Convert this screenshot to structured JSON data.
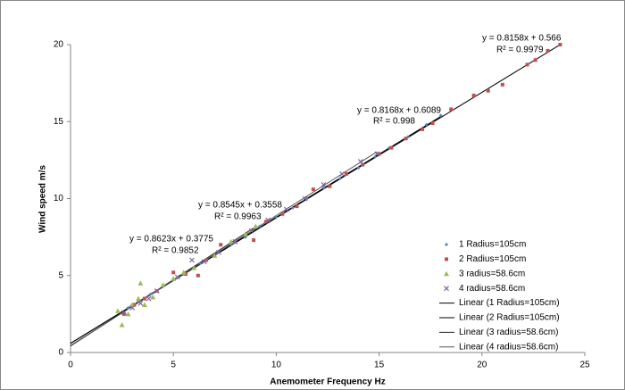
{
  "chart_data": {
    "type": "scatter",
    "x_label": "Anemometer Frequency Hz",
    "y_label": "Wind speed m/s",
    "xlim": [
      0,
      25
    ],
    "xticks": [
      0,
      5,
      10,
      15,
      20,
      25
    ],
    "ylim": [
      0,
      20
    ],
    "yticks": [
      0,
      5,
      10,
      15,
      20
    ],
    "grid": false,
    "legend": "right",
    "series": [
      {
        "name": "1 Radius=105cm",
        "color": "#4f81bd",
        "marker": "diamond",
        "x": [
          2.8,
          3.3,
          3.9,
          4.5,
          5.5,
          6.3,
          7.0,
          7.8,
          8.5,
          9.2,
          10.0,
          10.8,
          11.5,
          12.3,
          13.1,
          14.0,
          14.8,
          15.5,
          16.4,
          17.3,
          18.0
        ],
        "values": [
          2.9,
          3.3,
          3.8,
          4.3,
          5.1,
          5.8,
          6.3,
          7.0,
          7.5,
          8.2,
          8.8,
          9.4,
          10.0,
          10.7,
          11.3,
          12.0,
          12.7,
          13.3,
          14.0,
          14.8,
          15.4
        ],
        "trendline": {
          "name": "Linear (1 Radius=105cm)",
          "equation": "y = 0.8168x + 0.6089",
          "r2": "R² = 0.998"
        }
      },
      {
        "name": "2 Radius=105cm",
        "color": "#c0504d",
        "marker": "square",
        "x": [
          2.6,
          3.1,
          3.6,
          4.2,
          5.0,
          5.6,
          6.2,
          6.6,
          7.3,
          8.0,
          8.9,
          9.5,
          10.3,
          11.0,
          11.8,
          12.6,
          13.4,
          14.2,
          15.0,
          15.6,
          16.3,
          17.1,
          17.6,
          18.5,
          19.6,
          20.3,
          21.0,
          22.2,
          22.6,
          23.2,
          23.8
        ],
        "values": [
          2.5,
          3.1,
          3.5,
          4.0,
          5.2,
          5.1,
          5.0,
          6.0,
          7.0,
          7.2,
          7.3,
          8.5,
          9.0,
          9.5,
          10.6,
          10.8,
          11.6,
          12.2,
          12.9,
          13.3,
          13.9,
          14.5,
          14.9,
          15.8,
          16.7,
          17.0,
          17.4,
          18.7,
          19.0,
          19.6,
          20.0
        ],
        "trendline": {
          "name": "Linear (2 Radius=105cm)",
          "equation": "y = 0.8158x + 0.566",
          "r2": "R² = 0.9979"
        }
      },
      {
        "name": "3 radius=58.6cm",
        "color": "#9bbb59",
        "marker": "triangle",
        "x": [
          2.3,
          2.5,
          2.8,
          3.0,
          3.3,
          3.4,
          3.6,
          4.0,
          4.5,
          5.0,
          5.5,
          6.0,
          7.0,
          7.8,
          8.5,
          9.0
        ],
        "values": [
          2.7,
          1.8,
          2.5,
          3.1,
          3.5,
          4.5,
          3.1,
          3.6,
          4.4,
          4.8,
          5.2,
          5.5,
          6.3,
          7.2,
          7.7,
          8.2
        ],
        "trendline": {
          "name": "Linear (3 radius=58.6cm)",
          "equation": "y = 0.8623x + 0.3775",
          "r2": "R² = 0.9852"
        }
      },
      {
        "name": "4 radius=58.6cm",
        "color": "#8064a2",
        "marker": "x",
        "x": [
          2.6,
          3.0,
          3.4,
          3.8,
          4.2,
          5.2,
          5.9,
          6.5,
          7.2,
          8.0,
          8.8,
          9.6,
          10.5,
          11.4,
          12.3,
          13.2,
          14.1,
          14.9
        ],
        "values": [
          2.6,
          2.9,
          3.2,
          3.5,
          4.0,
          4.9,
          6.0,
          5.9,
          6.5,
          7.2,
          7.9,
          8.6,
          9.3,
          10.0,
          10.9,
          11.6,
          12.4,
          12.9
        ],
        "trendline": {
          "name": "Linear (4 radius=58.6cm)",
          "equation": "y = 0.8545x + 0.3558",
          "r2": "R² = 0.9963"
        }
      }
    ]
  }
}
